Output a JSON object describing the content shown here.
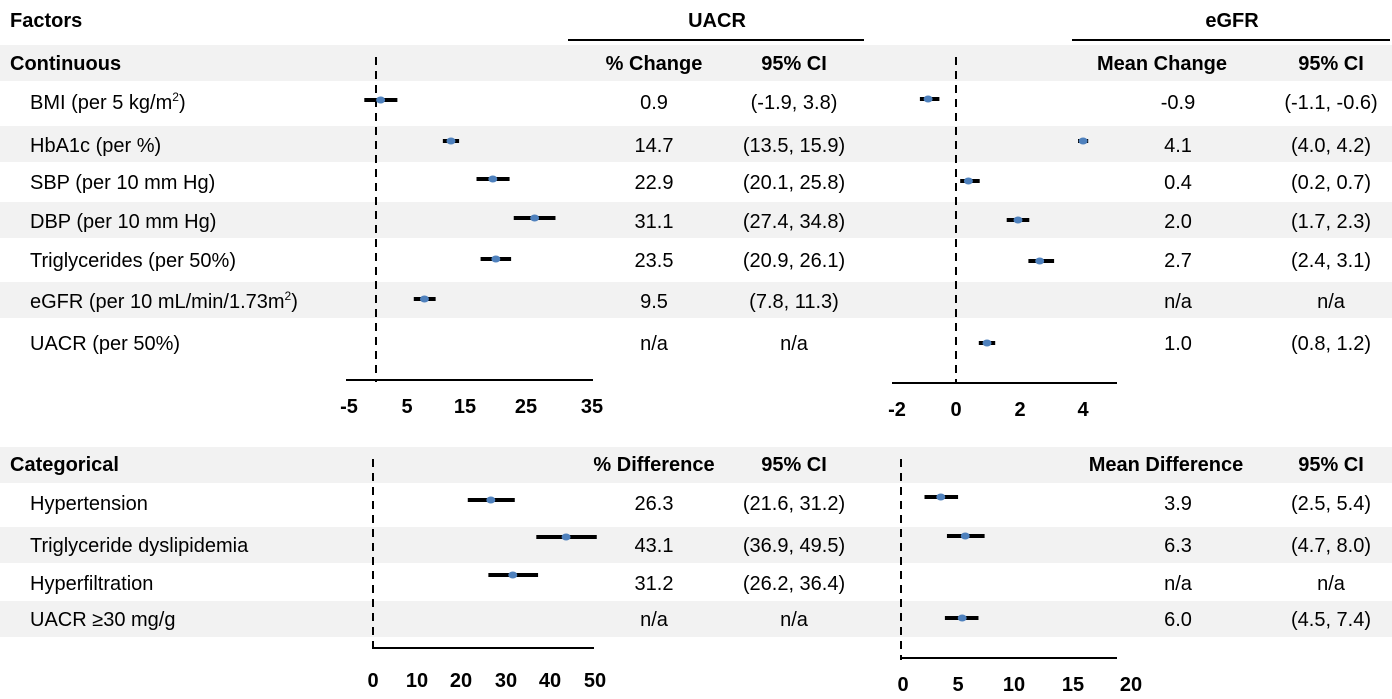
{
  "headers": {
    "factors": "Factors",
    "uacr": "UACR",
    "egfr": "eGFR"
  },
  "continuous": {
    "section_label": "Continuous",
    "uacr_col_estimate": "% Change",
    "uacr_col_ci": "95% CI",
    "egfr_col_estimate": "Mean Change",
    "egfr_col_ci": "95% CI",
    "rows": [
      {
        "label": "BMI (per 5 kg/m",
        "label_sup": "2",
        "label_after": ")",
        "uacr_estimate": "0.9",
        "uacr_ci": "(-1.9, 3.8)",
        "egfr_estimate": "-0.9",
        "egfr_ci": "(-1.1, -0.6)"
      },
      {
        "label": "HbA1c (per %)",
        "label_sup": "",
        "label_after": "",
        "uacr_estimate": "14.7",
        "uacr_ci": "(13.5, 15.9)",
        "egfr_estimate": "4.1",
        "egfr_ci": "(4.0, 4.2)"
      },
      {
        "label": "SBP (per 10 mm Hg)",
        "label_sup": "",
        "label_after": "",
        "uacr_estimate": "22.9",
        "uacr_ci": "(20.1, 25.8)",
        "egfr_estimate": "0.4",
        "egfr_ci": "(0.2, 0.7)"
      },
      {
        "label": "DBP (per 10 mm Hg)",
        "label_sup": "",
        "label_after": "",
        "uacr_estimate": "31.1",
        "uacr_ci": "(27.4, 34.8)",
        "egfr_estimate": "2.0",
        "egfr_ci": "(1.7, 2.3)"
      },
      {
        "label": "Triglycerides (per 50%)",
        "label_sup": "",
        "label_after": "",
        "uacr_estimate": "23.5",
        "uacr_ci": "(20.9, 26.1)",
        "egfr_estimate": "2.7",
        "egfr_ci": "(2.4, 3.1)"
      },
      {
        "label": "eGFR (per 10 mL/min/1.73m",
        "label_sup": "2",
        "label_after": ")",
        "uacr_estimate": "9.5",
        "uacr_ci": "(7.8, 11.3)",
        "egfr_estimate": "n/a",
        "egfr_ci": "n/a"
      },
      {
        "label": "UACR (per 50%)",
        "label_sup": "",
        "label_after": "",
        "uacr_estimate": "n/a",
        "uacr_ci": "n/a",
        "egfr_estimate": "1.0",
        "egfr_ci": "(0.8, 1.2)"
      }
    ]
  },
  "categorical": {
    "section_label": "Categorical",
    "uacr_col_estimate": "% Difference",
    "uacr_col_ci": "95% CI",
    "egfr_col_estimate": "Mean Difference",
    "egfr_col_ci": "95% CI",
    "rows": [
      {
        "label": "Hypertension",
        "uacr_estimate": "26.3",
        "uacr_ci": "(21.6, 31.2)",
        "egfr_estimate": "3.9",
        "egfr_ci": "(2.5, 5.4)"
      },
      {
        "label": "Triglyceride dyslipidemia",
        "uacr_estimate": "43.1",
        "uacr_ci": "(36.9, 49.5)",
        "egfr_estimate": "6.3",
        "egfr_ci": "(4.7, 8.0)"
      },
      {
        "label": "Hyperfiltration",
        "uacr_estimate": "31.2",
        "uacr_ci": "(26.2, 36.4)",
        "egfr_estimate": "n/a",
        "egfr_ci": "n/a"
      },
      {
        "label": "UACR ≥30 mg/g",
        "uacr_estimate": "n/a",
        "uacr_ci": "n/a",
        "egfr_estimate": "6.0",
        "egfr_ci": "(4.5, 7.4)"
      }
    ]
  },
  "colors": {
    "point": "#4f81bd",
    "ci_line": "#000000",
    "band": "#f2f2f2"
  },
  "chart_data": [
    {
      "type": "forest",
      "panel": "continuous-uacr",
      "x_ticks": [
        -5,
        5,
        15,
        25,
        35
      ],
      "xlim": [
        -5,
        35
      ],
      "reference_line": 0,
      "points": [
        {
          "est": 0.9,
          "lo": -1.9,
          "hi": 3.8
        },
        {
          "est": 14.7,
          "lo": 13.5,
          "hi": 15.9
        },
        {
          "est": 22.9,
          "lo": 20.1,
          "hi": 25.8
        },
        {
          "est": 31.1,
          "lo": 27.4,
          "hi": 34.8
        },
        {
          "est": 23.5,
          "lo": 20.9,
          "hi": 26.1
        },
        {
          "est": 9.5,
          "lo": 7.8,
          "hi": 11.3
        },
        null
      ]
    },
    {
      "type": "forest",
      "panel": "continuous-egfr",
      "x_ticks": [
        -2,
        0,
        2,
        4
      ],
      "xlim": [
        -2,
        5
      ],
      "reference_line": 0,
      "points": [
        {
          "est": -0.9,
          "lo": -1.1,
          "hi": -0.6
        },
        {
          "est": 4.1,
          "lo": 4.0,
          "hi": 4.2
        },
        {
          "est": 0.4,
          "lo": 0.2,
          "hi": 0.7
        },
        {
          "est": 2.0,
          "lo": 1.7,
          "hi": 2.3
        },
        {
          "est": 2.7,
          "lo": 2.4,
          "hi": 3.1
        },
        null,
        {
          "est": 1.0,
          "lo": 0.8,
          "hi": 1.2
        }
      ]
    },
    {
      "type": "forest",
      "panel": "categorical-uacr",
      "x_ticks": [
        0,
        10,
        20,
        30,
        40,
        50
      ],
      "xlim": [
        0,
        50
      ],
      "reference_line": 0,
      "points": [
        {
          "est": 26.3,
          "lo": 21.6,
          "hi": 31.2
        },
        {
          "est": 43.1,
          "lo": 36.9,
          "hi": 49.5
        },
        {
          "est": 31.2,
          "lo": 26.2,
          "hi": 36.4
        },
        null
      ]
    },
    {
      "type": "forest",
      "panel": "categorical-egfr",
      "x_ticks": [
        0,
        5,
        10,
        15,
        20
      ],
      "xlim": [
        0,
        20
      ],
      "reference_line": 0,
      "points": [
        {
          "est": 3.9,
          "lo": 2.5,
          "hi": 5.4
        },
        {
          "est": 6.3,
          "lo": 4.7,
          "hi": 8.0
        },
        null,
        {
          "est": 6.0,
          "lo": 4.5,
          "hi": 7.4
        }
      ]
    }
  ]
}
